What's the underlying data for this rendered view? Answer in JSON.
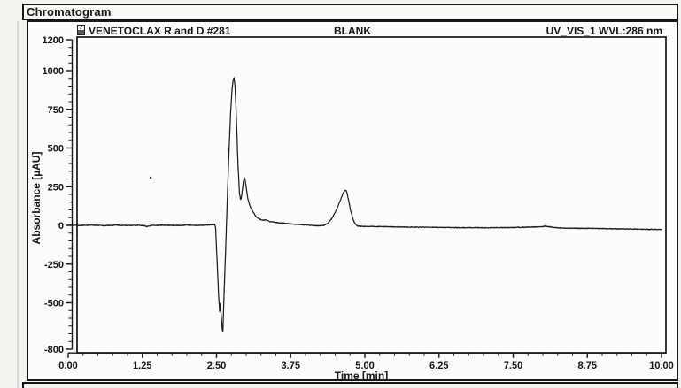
{
  "page": {
    "section_title": "Chromatogram"
  },
  "header": {
    "icon_glyph": "7",
    "icons": {
      "signal_icon": "signal-box-icon"
    }
  },
  "chart_data": {
    "type": "line",
    "annotations": {
      "left": "VENETOCLAX R and D #281",
      "center": "BLANK",
      "right": "UV_VIS_1 WVL:286 nm"
    },
    "xlabel": "Time [min]",
    "ylabel": "Absorbance [µAU]",
    "xlim": [
      0,
      10
    ],
    "ylim": [
      -800,
      1200
    ],
    "grid": false,
    "x_major_ticks": [
      {
        "value": 0,
        "label": "0.00"
      },
      {
        "value": 1.25,
        "label": "1.25"
      },
      {
        "value": 2.5,
        "label": "2.50"
      },
      {
        "value": 3.75,
        "label": "3.75"
      },
      {
        "value": 5,
        "label": "5.00"
      },
      {
        "value": 6.25,
        "label": "6.25"
      },
      {
        "value": 7.5,
        "label": "7.50"
      },
      {
        "value": 8.75,
        "label": "8.75"
      },
      {
        "value": 10,
        "label": "10.00"
      }
    ],
    "y_major_ticks": [
      {
        "value": 1200,
        "label": "1200"
      },
      {
        "value": 1000,
        "label": "1000"
      },
      {
        "value": 750,
        "label": "750"
      },
      {
        "value": 500,
        "label": "500"
      },
      {
        "value": 250,
        "label": "250"
      },
      {
        "value": 0,
        "label": "0"
      },
      {
        "value": -250,
        "label": "-250"
      },
      {
        "value": -500,
        "label": "-500"
      },
      {
        "value": -800,
        "label": "-800"
      }
    ],
    "x_minor_step": 0.25,
    "y_minor_step": 50,
    "line_color": "#1c1c1c",
    "features": {
      "baseline_uAU": 0,
      "injection_dip": {
        "time_min": 2.6,
        "min_uAU": -690
      },
      "main_peak": {
        "time_min": 2.8,
        "max_uAU": 955
      },
      "shoulder_peak": {
        "time_min": 2.97,
        "max_uAU": 310
      },
      "late_peak": {
        "time_min": 4.67,
        "max_uAU": 228
      },
      "end_baseline_uAU": -27
    },
    "artifact_dot": {
      "t": 1.39,
      "v": 309
    },
    "series": [
      {
        "name": "UV_VIS_1 WVL:286 nm",
        "color": "#1c1c1c",
        "noise_amplitude": 2.2,
        "noise_seed": 12345,
        "sample_step_min": 0.006,
        "anchor_points": [
          [
            0.0,
            1
          ],
          [
            0.2,
            -1
          ],
          [
            0.4,
            2
          ],
          [
            0.6,
            -2
          ],
          [
            0.8,
            1
          ],
          [
            1.0,
            -1
          ],
          [
            1.2,
            1
          ],
          [
            1.29,
            -3
          ],
          [
            1.33,
            -7
          ],
          [
            1.4,
            -1
          ],
          [
            1.6,
            1
          ],
          [
            1.8,
            -1
          ],
          [
            2.0,
            1
          ],
          [
            2.2,
            0
          ],
          [
            2.35,
            2
          ],
          [
            2.44,
            5
          ],
          [
            2.47,
            6
          ],
          [
            2.485,
            -20
          ],
          [
            2.51,
            -230
          ],
          [
            2.535,
            -450
          ],
          [
            2.552,
            -554
          ],
          [
            2.565,
            -505
          ],
          [
            2.578,
            -578
          ],
          [
            2.6,
            -685
          ],
          [
            2.607,
            -690
          ],
          [
            2.63,
            -420
          ],
          [
            2.657,
            -120
          ],
          [
            2.683,
            190
          ],
          [
            2.71,
            470
          ],
          [
            2.738,
            730
          ],
          [
            2.762,
            880
          ],
          [
            2.78,
            940
          ],
          [
            2.795,
            955
          ],
          [
            2.812,
            898
          ],
          [
            2.835,
            700
          ],
          [
            2.862,
            390
          ],
          [
            2.888,
            205
          ],
          [
            2.905,
            167
          ],
          [
            2.915,
            172
          ],
          [
            2.932,
            215
          ],
          [
            2.952,
            278
          ],
          [
            2.968,
            308
          ],
          [
            2.98,
            300
          ],
          [
            3.0,
            248
          ],
          [
            3.03,
            168
          ],
          [
            3.07,
            118
          ],
          [
            3.11,
            92
          ],
          [
            3.16,
            60
          ],
          [
            3.2,
            46
          ],
          [
            3.27,
            33
          ],
          [
            3.33,
            35
          ],
          [
            3.4,
            25
          ],
          [
            3.5,
            19
          ],
          [
            3.65,
            13
          ],
          [
            3.8,
            8
          ],
          [
            3.95,
            4
          ],
          [
            4.1,
            0
          ],
          [
            4.22,
            -3
          ],
          [
            4.3,
            -1
          ],
          [
            4.38,
            14
          ],
          [
            4.45,
            48
          ],
          [
            4.52,
            100
          ],
          [
            4.58,
            155
          ],
          [
            4.63,
            205
          ],
          [
            4.665,
            226
          ],
          [
            4.68,
            228
          ],
          [
            4.7,
            210
          ],
          [
            4.73,
            155
          ],
          [
            4.76,
            95
          ],
          [
            4.8,
            40
          ],
          [
            4.84,
            8
          ],
          [
            4.88,
            -4
          ],
          [
            4.95,
            -7
          ],
          [
            5.1,
            -7
          ],
          [
            5.4,
            -9
          ],
          [
            5.7,
            -11
          ],
          [
            6.0,
            -12
          ],
          [
            6.4,
            -14
          ],
          [
            6.8,
            -15
          ],
          [
            7.2,
            -15
          ],
          [
            7.6,
            -13
          ],
          [
            7.9,
            -10
          ],
          [
            8.05,
            -6
          ],
          [
            8.18,
            -13
          ],
          [
            8.35,
            -18
          ],
          [
            8.6,
            -19
          ],
          [
            8.9,
            -20
          ],
          [
            9.2,
            -22
          ],
          [
            9.55,
            -24
          ],
          [
            10.0,
            -27
          ]
        ]
      }
    ]
  }
}
